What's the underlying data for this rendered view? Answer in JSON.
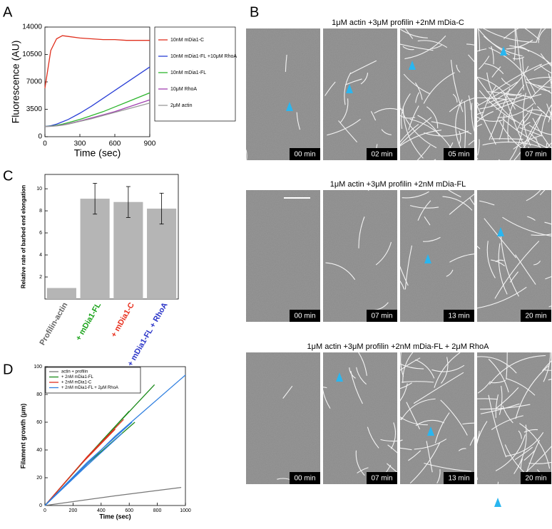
{
  "panel_labels": [
    "A",
    "B",
    "C",
    "D"
  ],
  "chart_data": [
    {
      "type": "line",
      "x_label": "Time (sec)",
      "y_label": "Fluorescence (AU)",
      "x": [
        0,
        50,
        100,
        150,
        200,
        300,
        400,
        500,
        600,
        700,
        800,
        900
      ],
      "xlim": [
        0,
        900
      ],
      "xticks": [
        0,
        300,
        600,
        900
      ],
      "ylim": [
        0,
        14000
      ],
      "yticks": [
        0,
        3500,
        7000,
        10500,
        14000
      ],
      "legend": "outside-right",
      "series": [
        {
          "name": "10nM mDia1-C",
          "color": "#e0301e",
          "values": [
            6200,
            11000,
            12500,
            12900,
            12800,
            12600,
            12500,
            12400,
            12400,
            12300,
            12300,
            12300
          ]
        },
        {
          "name": "10nM mDia1-FL +10μM RhoA",
          "color": "#2a3fd6",
          "values": [
            1300,
            1400,
            1600,
            1900,
            2200,
            3000,
            3900,
            4900,
            5900,
            6900,
            7900,
            8900
          ]
        },
        {
          "name": "10nM mDia1-FL",
          "color": "#2db52d",
          "values": [
            1300,
            1350,
            1450,
            1600,
            1800,
            2200,
            2700,
            3200,
            3800,
            4400,
            5000,
            5600
          ]
        },
        {
          "name": "10μM RhoA",
          "color": "#a040b0",
          "values": [
            1300,
            1330,
            1400,
            1500,
            1650,
            2000,
            2400,
            2800,
            3200,
            3700,
            4200,
            4700
          ]
        },
        {
          "name": "2μM actin",
          "color": "#999999",
          "values": [
            1300,
            1320,
            1380,
            1470,
            1600,
            1950,
            2300,
            2700,
            3100,
            3500,
            3900,
            4300
          ]
        }
      ]
    },
    {
      "type": "bar",
      "y_label": "Relative rate of barbed end elongation",
      "categories": [
        "Profilin-actin",
        "+ mDia1-FL",
        "+ mDia1-C",
        "+ mDia1-FL + RhoA"
      ],
      "label_colors": [
        "#666666",
        "#1aa31a",
        "#e8301e",
        "#2b35c8"
      ],
      "values": [
        1,
        9.1,
        8.8,
        8.2
      ],
      "errors": [
        0,
        1.4,
        1.4,
        1.4
      ],
      "color": "#b5b5b5",
      "ylim": [
        0,
        11.3
      ],
      "yticks": [
        2,
        4,
        6,
        8,
        10
      ]
    },
    {
      "type": "line",
      "x_label": "Time (sec)",
      "y_label": "Filament growth (μm)",
      "xlim": [
        0,
        1000
      ],
      "xticks": [
        0,
        200,
        400,
        600,
        800,
        1000
      ],
      "ylim": [
        0,
        100
      ],
      "yticks": [
        0,
        20,
        40,
        60,
        80,
        100
      ],
      "legend": "upper-left",
      "series": [
        {
          "name": "actin + profilin",
          "color": "#777777",
          "traces": [
            {
              "x": [
                0,
                500,
                970
              ],
              "values": [
                0,
                7,
                13
              ]
            }
          ]
        },
        {
          "name": "+ 2nM mDia1-FL",
          "color": "#1a8a1a",
          "traces": [
            {
              "x": [
                0,
                400,
                780
              ],
              "values": [
                0,
                46,
                87
              ]
            },
            {
              "x": [
                0,
                300,
                640
              ],
              "values": [
                0,
                30,
                60
              ]
            },
            {
              "x": [
                0,
                300,
                600
              ],
              "values": [
                0,
                35,
                68
              ]
            }
          ]
        },
        {
          "name": "+ 2nM mDia1-C",
          "color": "#e0301e",
          "traces": [
            {
              "x": [
                0,
                300,
                560
              ],
              "values": [
                0,
                35,
                62
              ]
            },
            {
              "x": [
                0,
                250,
                500
              ],
              "values": [
                0,
                29,
                55
              ]
            }
          ]
        },
        {
          "name": "+ 2nM mDia1-FL + 2μM RhoA",
          "color": "#2f7fe0",
          "traces": [
            {
              "x": [
                0,
                500,
                1000
              ],
              "values": [
                0,
                50,
                94
              ]
            },
            {
              "x": [
                0,
                300,
                620
              ],
              "values": [
                0,
                31,
                60
              ]
            },
            {
              "x": [
                0,
                280,
                550
              ],
              "values": [
                0,
                27,
                52
              ]
            }
          ]
        }
      ]
    }
  ],
  "microscopy": {
    "rows": [
      {
        "title": "1μM actin +3μM profilin +2nM mDia-C",
        "times": [
          "00 min",
          "02 min",
          "05 min",
          "07 min"
        ]
      },
      {
        "title": "1μM actin +3μM profilin +2nM mDia-FL",
        "times": [
          "00 min",
          "07 min",
          "13 min",
          "20 min"
        ]
      },
      {
        "title": "1μM actin +3μM profilin +2nM mDia-FL + 2μM RhoA",
        "times": [
          "00 min",
          "07 min",
          "13 min",
          "20 min"
        ]
      }
    ]
  }
}
